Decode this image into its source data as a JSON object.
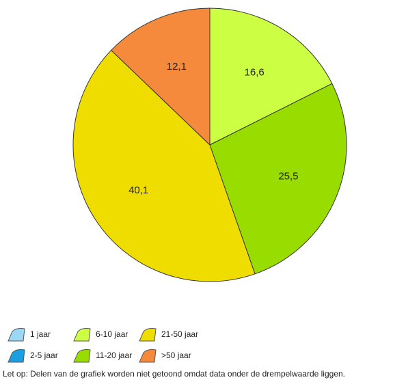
{
  "chart_data": {
    "type": "pie",
    "categories": [
      "1 jaar",
      "2-5 jaar",
      "6-10 jaar",
      "11-20 jaar",
      "21-50 jaar",
      ">50 jaar"
    ],
    "values": [
      null,
      null,
      16.6,
      25.5,
      40.1,
      12.1
    ],
    "value_labels": [
      null,
      null,
      "16,6",
      "25,5",
      "40,1",
      "12,1"
    ],
    "colors": [
      "#9ad8f5",
      "#1c9fe0",
      "#ccff44",
      "#99dd00",
      "#f0dd00",
      "#f58a3c"
    ],
    "legend": "bottom",
    "note": "Let op: Delen van de grafiek worden niet getoond omdat data onder de drempelwaarde liggen."
  }
}
